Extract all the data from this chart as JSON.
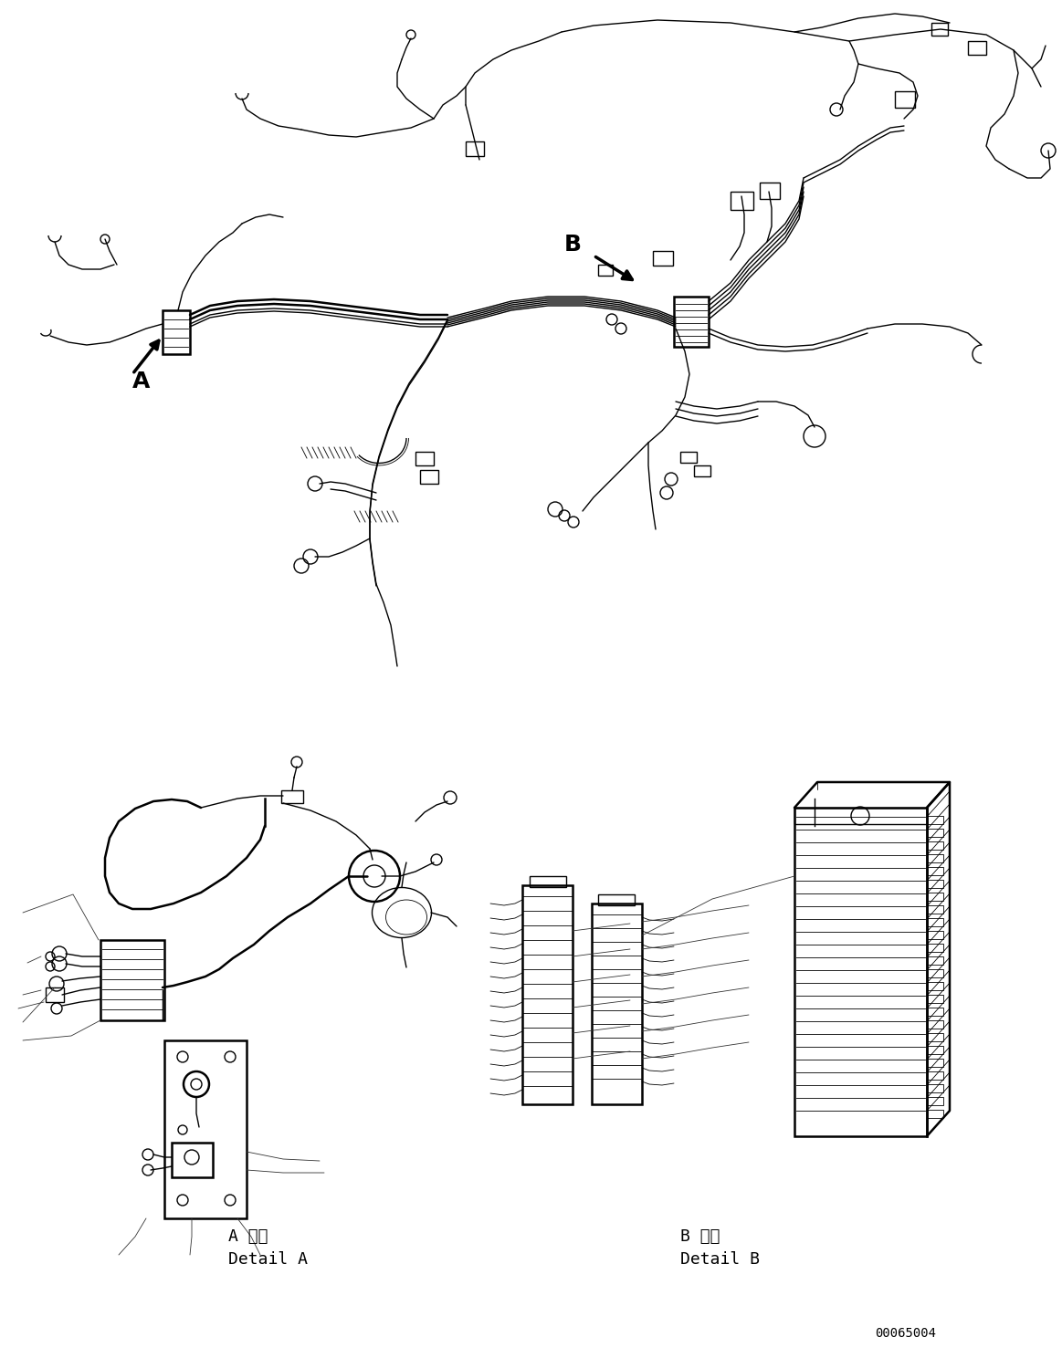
{
  "bg_color": "#ffffff",
  "line_color": "#000000",
  "fig_width": 11.63,
  "fig_height": 14.88,
  "dpi": 100,
  "label_A": "A",
  "label_B": "B",
  "detail_A_jp": "A 詳細",
  "detail_A_en": "Detail A",
  "detail_B_jp": "B 詳細",
  "detail_B_en": "Detail B",
  "part_number": "00065004",
  "lw": 1.0,
  "lw_thick": 1.8,
  "lw_thin": 0.6
}
